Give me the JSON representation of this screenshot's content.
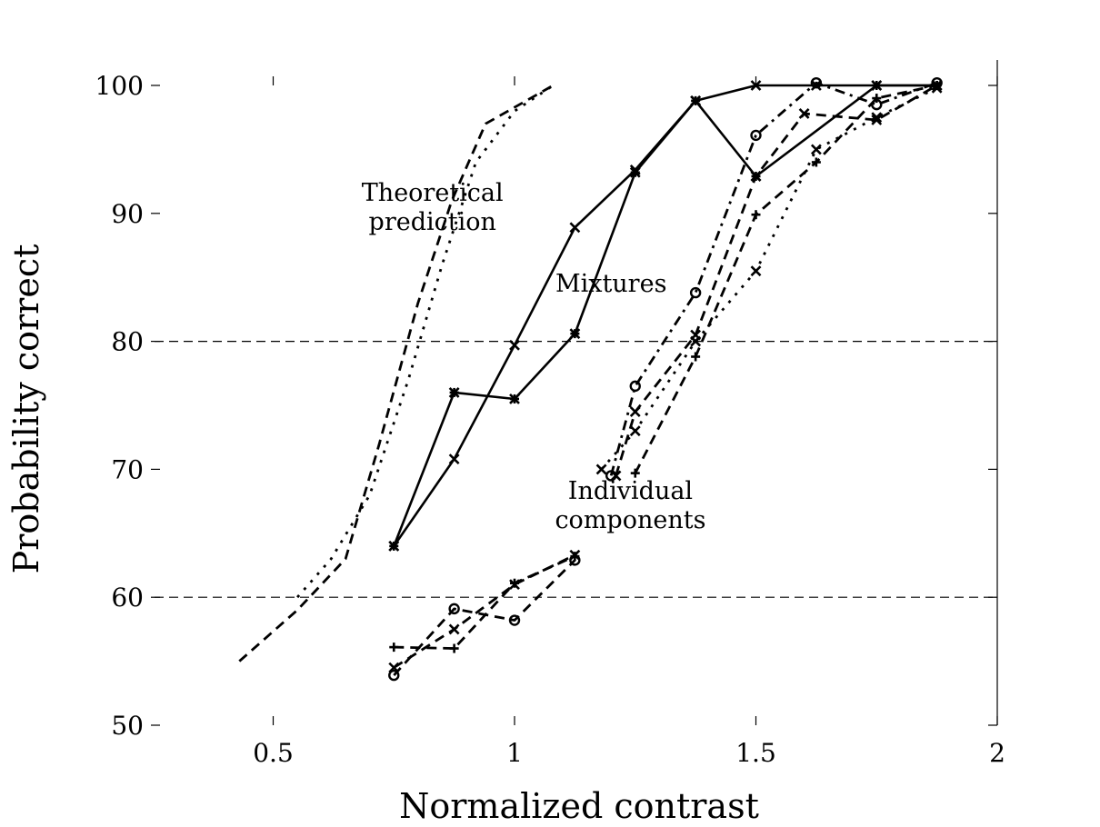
{
  "chart_data": {
    "type": "line",
    "title": "",
    "xlabel": "Normalized contrast",
    "ylabel": "Probability correct",
    "xlim": [
      0.25,
      2.0
    ],
    "ylim": [
      50,
      102
    ],
    "xticks": [
      0.5,
      1,
      1.5,
      2
    ],
    "xtick_labels": [
      "0.5",
      "1",
      "1.5",
      "2"
    ],
    "yticks": [
      50,
      60,
      70,
      80,
      90,
      100
    ],
    "ytick_labels": [
      "50",
      "60",
      "70",
      "80",
      "90",
      "100"
    ],
    "reference_lines_y": [
      60,
      80
    ],
    "grid": false,
    "annotations": [
      {
        "lines": [
          "Theoretical",
          "prediction"
        ],
        "x": 0.83,
        "y": 90.5
      },
      {
        "lines": [
          "Mixtures"
        ],
        "x": 1.2,
        "y": 84.5
      },
      {
        "lines": [
          "Individual",
          "components"
        ],
        "x": 1.24,
        "y": 67.2
      }
    ],
    "series": [
      {
        "group": "theory",
        "style": "dashed",
        "marker": "none",
        "x": [
          0.43,
          0.55,
          0.65,
          0.72,
          0.8,
          0.87,
          0.94,
          1.08
        ],
        "y": [
          55,
          59,
          63,
          72,
          83,
          91,
          97,
          100
        ]
      },
      {
        "group": "theory",
        "style": "dotted",
        "marker": "none",
        "x": [
          0.55,
          0.62,
          0.7,
          0.78,
          0.85,
          0.92,
          1.0,
          1.08
        ],
        "y": [
          60,
          63,
          68,
          77,
          86,
          94,
          98,
          100
        ]
      },
      {
        "group": "mixtures",
        "style": "solid",
        "marker": "x",
        "x": [
          0.75,
          0.875,
          1.0,
          1.125,
          1.25,
          1.375,
          1.5,
          1.625,
          1.75,
          1.875
        ],
        "y": [
          64.0,
          70.8,
          79.7,
          88.9,
          93.4,
          98.8,
          100.0,
          100.0,
          100.0,
          100.0
        ]
      },
      {
        "group": "mixtures",
        "style": "solid",
        "marker": "*",
        "x": [
          0.75,
          0.875,
          1.0,
          1.125,
          1.25,
          1.375,
          1.5,
          1.75,
          1.875
        ],
        "y": [
          64.0,
          76.0,
          75.5,
          80.6,
          93.2,
          98.8,
          92.9,
          100.0,
          100.0
        ]
      },
      {
        "group": "components",
        "style": "dashed",
        "marker": "o",
        "x": [
          0.75,
          0.875,
          1.0,
          1.125
        ],
        "y": [
          53.9,
          59.1,
          58.2,
          62.9
        ]
      },
      {
        "group": "components",
        "style": "dashed",
        "marker": "+",
        "x": [
          0.75,
          0.875,
          1.0,
          1.125
        ],
        "y": [
          56.1,
          56.0,
          61.1,
          63.2
        ]
      },
      {
        "group": "components",
        "style": "dashed",
        "marker": "x",
        "x": [
          0.75,
          0.875,
          1.0,
          1.125
        ],
        "y": [
          54.5,
          57.5,
          61.0,
          63.3
        ]
      },
      {
        "group": "components",
        "style": "dotdash",
        "marker": "o",
        "x": [
          1.2,
          1.25,
          1.375,
          1.5,
          1.625,
          1.75,
          1.875
        ],
        "y": [
          69.5,
          76.5,
          83.8,
          96.1,
          100.2,
          98.5,
          100.2
        ]
      },
      {
        "group": "components",
        "style": "dashed",
        "marker": "x",
        "x": [
          1.21,
          1.25,
          1.375,
          1.5,
          1.6,
          1.75,
          1.875
        ],
        "y": [
          69.5,
          74.5,
          80.5,
          92.9,
          97.8,
          97.3,
          100.0
        ]
      },
      {
        "group": "components",
        "style": "dashed",
        "marker": "+",
        "x": [
          1.25,
          1.375,
          1.5,
          1.625,
          1.75,
          1.875
        ],
        "y": [
          69.7,
          78.8,
          89.9,
          94.0,
          99.0,
          100.0
        ]
      },
      {
        "group": "components",
        "style": "dotted",
        "marker": "x",
        "x": [
          1.18,
          1.25,
          1.375,
          1.5,
          1.625,
          1.75,
          1.875
        ],
        "y": [
          70.0,
          73.0,
          80.0,
          85.5,
          95.0,
          97.5,
          99.8
        ]
      }
    ]
  }
}
